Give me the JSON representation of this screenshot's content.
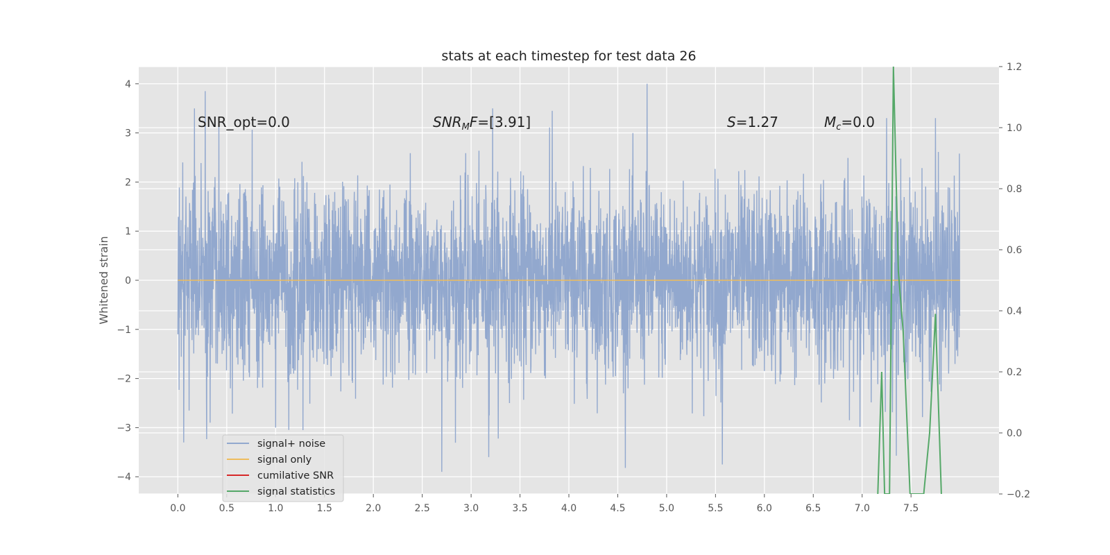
{
  "chart_data": {
    "type": "line",
    "title": "stats at each timestep for test data 26",
    "xlabel": "",
    "ylabel": "Whitened strain",
    "xlim": [
      -0.4,
      8.4
    ],
    "ylim": [
      -4.35,
      4.35
    ],
    "y2lim": [
      -0.2,
      1.2
    ],
    "xticks": [
      "0.0",
      "0.5",
      "1.0",
      "1.5",
      "2.0",
      "2.5",
      "3.0",
      "3.5",
      "4.0",
      "4.5",
      "5.0",
      "5.5",
      "6.0",
      "6.5",
      "7.0",
      "7.5"
    ],
    "yticks": [
      "4",
      "3",
      "2",
      "1",
      "0",
      "−1",
      "−2",
      "−3",
      "−4"
    ],
    "y2ticks": [
      "1.2",
      "1.0",
      "0.8",
      "0.6",
      "0.4",
      "0.2",
      "0.0",
      "−0.2"
    ],
    "grid": true,
    "legend_position": "lower-left",
    "annotations": {
      "snr_opt": "SNR_opt=0.0",
      "snr_mf_sym": "SNR",
      "snr_mf_sub": "M",
      "snr_mf_sym2": "F",
      "snr_mf_val": "=[3.91]",
      "s_sym": "S",
      "s_val": "=1.27",
      "mc_sym": "M",
      "mc_sub": "c",
      "mc_val": "=0.0"
    },
    "series": [
      {
        "name": "signal+ noise",
        "color": "#92a8ce",
        "axis": "left",
        "x_range": [
          0.0,
          8.0
        ],
        "description": "dense whitened noise, roughly gaussian with std ~1",
        "sample_points": [
          [
            0.0,
            -1.1
          ],
          [
            0.02,
            0.9
          ],
          [
            0.05,
            2.4
          ],
          [
            0.06,
            -3.3
          ],
          [
            0.17,
            3.5
          ],
          [
            0.28,
            3.85
          ],
          [
            0.33,
            -2.9
          ],
          [
            1.0,
            -3.0
          ],
          [
            1.28,
            -3.05
          ],
          [
            2.7,
            -3.9
          ],
          [
            3.18,
            -3.6
          ],
          [
            3.22,
            3.5
          ],
          [
            3.83,
            3.45
          ],
          [
            4.8,
            4.0
          ],
          [
            5.57,
            -3.75
          ],
          [
            7.25,
            3.3
          ],
          [
            7.75,
            3.3
          ]
        ]
      },
      {
        "name": "signal only",
        "color": "#eebc5c",
        "axis": "left",
        "points": [
          [
            0.0,
            0.0
          ],
          [
            8.0,
            0.0
          ]
        ]
      },
      {
        "name": "cumilative SNR",
        "color": "#d62728",
        "axis": "right",
        "points": []
      },
      {
        "name": "signal statistics",
        "color": "#55a868",
        "axis": "right",
        "points": [
          [
            7.16,
            -0.2
          ],
          [
            7.2,
            0.2
          ],
          [
            7.23,
            -0.2
          ],
          [
            7.28,
            -0.2
          ],
          [
            7.32,
            1.2
          ],
          [
            7.37,
            0.53
          ],
          [
            7.42,
            0.33
          ],
          [
            7.49,
            -0.2
          ],
          [
            7.63,
            -0.2
          ],
          [
            7.69,
            0.0
          ],
          [
            7.75,
            0.39
          ],
          [
            7.81,
            -0.2
          ]
        ]
      }
    ]
  }
}
